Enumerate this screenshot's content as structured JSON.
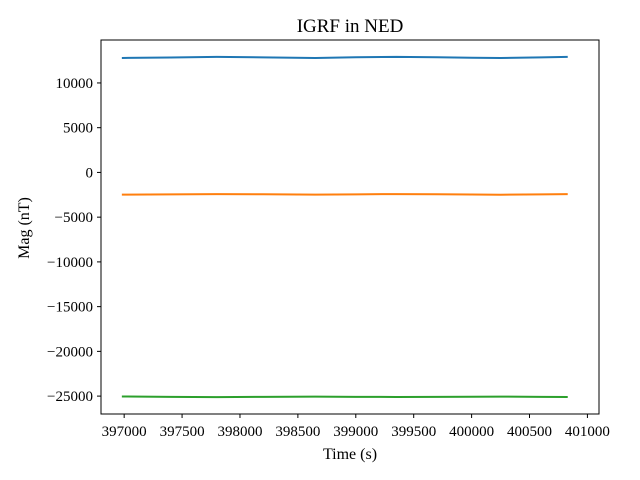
{
  "chart_data": {
    "type": "line",
    "title": "IGRF in NED",
    "xlabel": "Time (s)",
    "ylabel": "Mag (nT)",
    "xlim": [
      396800,
      401100
    ],
    "ylim": [
      -27000,
      14800
    ],
    "xticks": [
      397000,
      397500,
      398000,
      398500,
      399000,
      399500,
      400000,
      400500,
      401000
    ],
    "xtick_labels": [
      "397000",
      "397500",
      "398000",
      "398500",
      "399000",
      "399500",
      "400000",
      "400500",
      "401000"
    ],
    "yticks": [
      10000,
      5000,
      0,
      -5000,
      -10000,
      -15000,
      -20000,
      -25000
    ],
    "ytick_labels": [
      "10000",
      "5000",
      "0",
      "−5000",
      "−10000",
      "−15000",
      "−20000",
      "−25000"
    ],
    "grid": false,
    "legend": "none",
    "series": [
      {
        "color": "#1f77b4",
        "x": [
          396980,
          397400,
          397800,
          398200,
          398650,
          399000,
          399350,
          399700,
          400000,
          400250,
          400600,
          400830
        ],
        "y": [
          12790,
          12850,
          12910,
          12860,
          12790,
          12870,
          12920,
          12870,
          12810,
          12790,
          12860,
          12910
        ]
      },
      {
        "color": "#ff7f0e",
        "x": [
          396980,
          397400,
          397800,
          398200,
          398650,
          399000,
          399350,
          399700,
          400000,
          400250,
          400600,
          400830
        ],
        "y": [
          -2480,
          -2450,
          -2420,
          -2440,
          -2480,
          -2450,
          -2420,
          -2440,
          -2470,
          -2490,
          -2450,
          -2420
        ]
      },
      {
        "color": "#2ca02c",
        "x": [
          396980,
          397400,
          397800,
          398200,
          398650,
          399000,
          399350,
          399700,
          400000,
          400250,
          400600,
          400830
        ],
        "y": [
          -25040,
          -25090,
          -25110,
          -25080,
          -25060,
          -25080,
          -25100,
          -25090,
          -25070,
          -25060,
          -25080,
          -25100
        ]
      }
    ]
  }
}
